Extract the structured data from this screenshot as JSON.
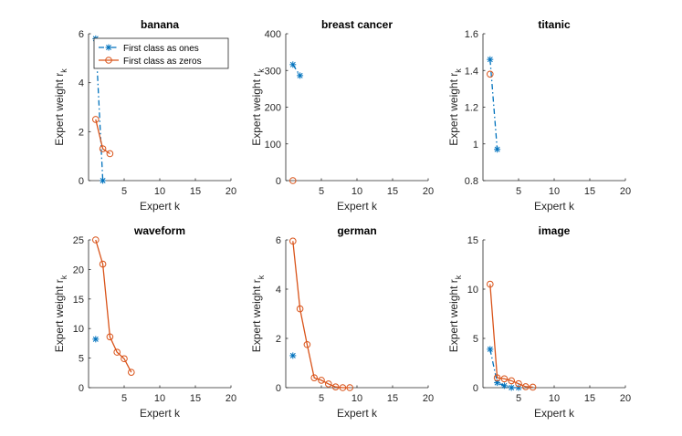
{
  "colors": {
    "ones": "#0072BD",
    "zeros": "#D95319"
  },
  "legend": {
    "ones_label": "First class as ones",
    "zeros_label": "First class as zeros",
    "placement": "top-right"
  },
  "chart_data": [
    {
      "type": "line",
      "title": "banana",
      "xlabel": "Expert k",
      "ylabel": "Expert weight r",
      "ylabel_sub": "k",
      "xlim": [
        0,
        20
      ],
      "ylim": [
        0,
        6
      ],
      "xticks": [
        5,
        10,
        15,
        20
      ],
      "yticks": [
        0,
        2,
        4,
        6
      ],
      "ytick_labels": [
        "0",
        "2",
        "4",
        "6"
      ],
      "show_legend": true,
      "series": [
        {
          "name": "First class as ones",
          "x": [
            1,
            2
          ],
          "y": [
            5.8,
            0.0
          ]
        },
        {
          "name": "First class as zeros",
          "x": [
            1,
            2,
            3
          ],
          "y": [
            2.5,
            1.3,
            1.1
          ]
        }
      ]
    },
    {
      "type": "line",
      "title": "breast cancer",
      "xlabel": "Expert k",
      "ylabel": "Expert weight r",
      "ylabel_sub": "k",
      "xlim": [
        0,
        20
      ],
      "ylim": [
        0,
        400
      ],
      "xticks": [
        5,
        10,
        15,
        20
      ],
      "yticks": [
        0,
        100,
        200,
        300,
        400
      ],
      "ytick_labels": [
        "0",
        "100",
        "200",
        "300",
        "400"
      ],
      "show_legend": false,
      "series": [
        {
          "name": "First class as ones",
          "x": [
            1,
            2
          ],
          "y": [
            316,
            286
          ]
        },
        {
          "name": "First class as zeros",
          "x": [
            1
          ],
          "y": [
            0
          ]
        }
      ]
    },
    {
      "type": "line",
      "title": "titanic",
      "xlabel": "Expert k",
      "ylabel": "Expert weight r",
      "ylabel_sub": "k",
      "xlim": [
        0,
        20
      ],
      "ylim": [
        0.8,
        1.6
      ],
      "xticks": [
        5,
        10,
        15,
        20
      ],
      "yticks": [
        0.8,
        1.0,
        1.2,
        1.4,
        1.6
      ],
      "ytick_labels": [
        "0.8",
        "1",
        "1.2",
        "1.4",
        "1.6"
      ],
      "show_legend": false,
      "series": [
        {
          "name": "First class as ones",
          "x": [
            1,
            2
          ],
          "y": [
            1.46,
            0.97
          ]
        },
        {
          "name": "First class as zeros",
          "x": [
            1
          ],
          "y": [
            1.38
          ]
        }
      ]
    },
    {
      "type": "line",
      "title": "waveform",
      "xlabel": "Expert k",
      "ylabel": "Expert weight r",
      "ylabel_sub": "k",
      "xlim": [
        0,
        20
      ],
      "ylim": [
        0,
        25
      ],
      "xticks": [
        5,
        10,
        15,
        20
      ],
      "yticks": [
        0,
        5,
        10,
        15,
        20,
        25
      ],
      "ytick_labels": [
        "0",
        "5",
        "10",
        "15",
        "20",
        "25"
      ],
      "show_legend": false,
      "series": [
        {
          "name": "First class as ones",
          "x": [
            1
          ],
          "y": [
            8.2
          ]
        },
        {
          "name": "First class as zeros",
          "x": [
            1,
            2,
            3,
            4,
            5,
            6
          ],
          "y": [
            25.0,
            20.9,
            8.6,
            6.0,
            4.9,
            2.6
          ]
        }
      ]
    },
    {
      "type": "line",
      "title": "german",
      "xlabel": "Expert k",
      "ylabel": "Expert weight r",
      "ylabel_sub": "k",
      "xlim": [
        0,
        20
      ],
      "ylim": [
        0,
        6
      ],
      "xticks": [
        5,
        10,
        15,
        20
      ],
      "yticks": [
        0,
        2,
        4,
        6
      ],
      "ytick_labels": [
        "0",
        "2",
        "4",
        "6"
      ],
      "show_legend": false,
      "series": [
        {
          "name": "First class as ones",
          "x": [
            1
          ],
          "y": [
            1.3
          ]
        },
        {
          "name": "First class as zeros",
          "x": [
            1,
            2,
            3,
            4,
            5,
            6,
            7,
            8,
            9
          ],
          "y": [
            5.95,
            3.2,
            1.75,
            0.4,
            0.3,
            0.15,
            0.03,
            0.0,
            0.0
          ]
        }
      ]
    },
    {
      "type": "line",
      "title": "image",
      "xlabel": "Expert k",
      "ylabel": "Expert weight r",
      "ylabel_sub": "k",
      "xlim": [
        0,
        20
      ],
      "ylim": [
        0,
        15
      ],
      "xticks": [
        5,
        10,
        15,
        20
      ],
      "yticks": [
        0,
        5,
        10,
        15
      ],
      "ytick_labels": [
        "0",
        "5",
        "10",
        "15"
      ],
      "show_legend": false,
      "series": [
        {
          "name": "First class as ones",
          "x": [
            1,
            2,
            3,
            4,
            5
          ],
          "y": [
            3.9,
            0.5,
            0.2,
            0.0,
            0.0
          ]
        },
        {
          "name": "First class as zeros",
          "x": [
            1,
            2,
            3,
            4,
            5,
            6,
            7
          ],
          "y": [
            10.5,
            1.0,
            0.9,
            0.7,
            0.4,
            0.1,
            0.05
          ]
        }
      ]
    }
  ]
}
